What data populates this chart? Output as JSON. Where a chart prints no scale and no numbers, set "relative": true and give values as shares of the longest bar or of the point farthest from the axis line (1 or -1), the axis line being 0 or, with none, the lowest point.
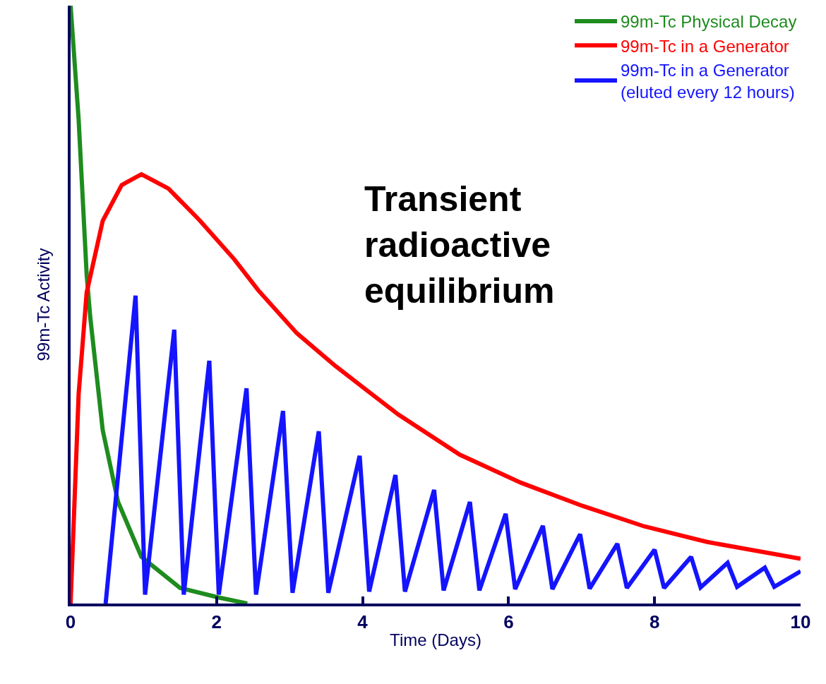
{
  "chart_data": {
    "type": "line",
    "relative": true,
    "xlabel": "Time (Days)",
    "ylabel": "99m-Tc Activity",
    "xlim": [
      0,
      10
    ],
    "xticks": [
      0,
      2,
      4,
      6,
      8,
      10
    ],
    "legend": "top right",
    "marker": "none",
    "line_style": "solid",
    "tick_labels": "x",
    "annotations": [
      "Transient\nradioactive\nequilibrium"
    ],
    "series": [
      {
        "name": "99m-Tc Physical Decay",
        "color": "#1e8c1e",
        "x": [
          0,
          0.11,
          0.22,
          0.27,
          0.44,
          0.65,
          0.97,
          1.5,
          2.03,
          2.42
        ],
        "values": [
          1.0,
          0.81,
          0.55,
          0.478,
          0.29,
          0.17,
          0.078,
          0.026,
          0.01,
          0
        ]
      },
      {
        "name": "99m-Tc in a Generator",
        "color": "#ff0000",
        "x": [
          0,
          0.11,
          0.22,
          0.44,
          0.7,
          0.97,
          1.34,
          1.76,
          2.24,
          2.57,
          3.1,
          3.63,
          4.49,
          5.33,
          6.17,
          7.02,
          7.86,
          8.72,
          10
        ],
        "values": [
          0,
          0.35,
          0.52,
          0.64,
          0.7,
          0.718,
          0.694,
          0.642,
          0.576,
          0.524,
          0.452,
          0.397,
          0.316,
          0.249,
          0.202,
          0.163,
          0.129,
          0.103,
          0.075
        ]
      },
      {
        "name": "99m-Tc in a Generator\n(eluted every 12 hours)",
        "color": "#1414ff",
        "x": [
          0.48,
          0.89,
          1.02,
          1.42,
          1.55,
          1.9,
          2.03,
          2.41,
          2.54,
          2.91,
          3.04,
          3.4,
          3.53,
          3.96,
          4.09,
          4.45,
          4.58,
          4.98,
          5.11,
          5.47,
          5.6,
          5.96,
          6.09,
          6.47,
          6.6,
          6.98,
          7.11,
          7.49,
          7.62,
          8.0,
          8.13,
          8.5,
          8.63,
          9.0,
          9.13,
          9.51,
          9.64,
          10.0
        ],
        "values": [
          0,
          0.515,
          0.015,
          0.458,
          0.015,
          0.406,
          0.015,
          0.36,
          0.015,
          0.322,
          0.018,
          0.288,
          0.018,
          0.247,
          0.02,
          0.215,
          0.02,
          0.19,
          0.022,
          0.17,
          0.022,
          0.15,
          0.024,
          0.13,
          0.024,
          0.116,
          0.025,
          0.1,
          0.026,
          0.09,
          0.026,
          0.078,
          0.027,
          0.068,
          0.028,
          0.06,
          0.028,
          0.054
        ]
      }
    ]
  }
}
